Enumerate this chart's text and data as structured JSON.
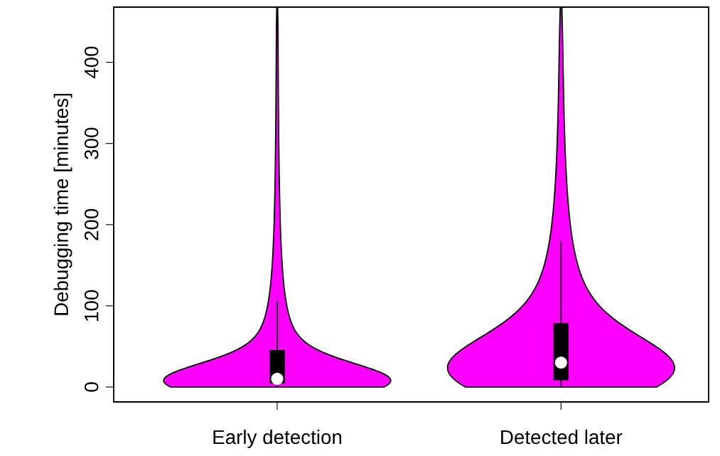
{
  "chart_data": {
    "type": "box",
    "ylabel": "Debugging time [minutes]",
    "categories": [
      "Early detection",
      "Detected later"
    ],
    "color": "#000000",
    "ylim": [
      -18.4,
      468
    ],
    "yticks": [
      0,
      100,
      200,
      300,
      400
    ],
    "grid": false,
    "boxes": [
      {
        "low": 2,
        "q1": 5,
        "median": 10,
        "q3": 45,
        "high": 105
      },
      {
        "low": 2,
        "q1": 9,
        "median": 30,
        "q3": 78,
        "high": 179
      }
    ]
  }
}
